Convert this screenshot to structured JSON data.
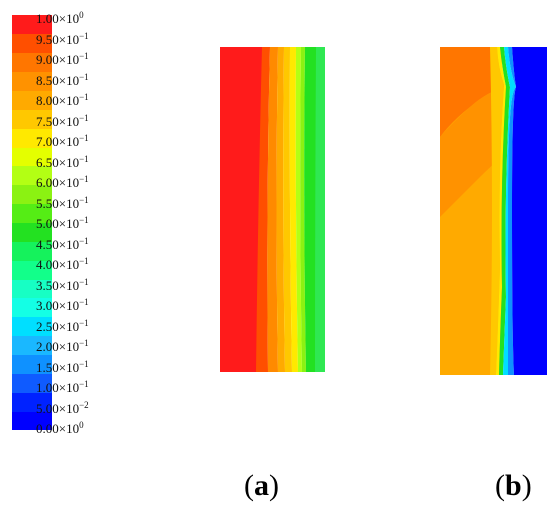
{
  "legend": {
    "colors": [
      "#0000ff",
      "#0022ff",
      "#0f5bff",
      "#0f91ff",
      "#1ab8ff",
      "#00dfff",
      "#14ffe5",
      "#17ffc4",
      "#12ff8a",
      "#15f25c",
      "#23e121",
      "#55ed15",
      "#8bf212",
      "#b3ff14",
      "#e4ff00",
      "#ffe900",
      "#ffc800",
      "#ffaa00",
      "#ff9200",
      "#ff7600",
      "#ff4f00",
      "#ff1b1b"
    ],
    "labels": [
      {
        "mantissa": "1.00",
        "exponent": "0"
      },
      {
        "mantissa": "9.50",
        "exponent": "−1"
      },
      {
        "mantissa": "9.00",
        "exponent": "−1"
      },
      {
        "mantissa": "8.50",
        "exponent": "−1"
      },
      {
        "mantissa": "8.00",
        "exponent": "−1"
      },
      {
        "mantissa": "7.50",
        "exponent": "−1"
      },
      {
        "mantissa": "7.00",
        "exponent": "−1"
      },
      {
        "mantissa": "6.50",
        "exponent": "−1"
      },
      {
        "mantissa": "6.00",
        "exponent": "−1"
      },
      {
        "mantissa": "5.50",
        "exponent": "−1"
      },
      {
        "mantissa": "5.00",
        "exponent": "−1"
      },
      {
        "mantissa": "4.50",
        "exponent": "−1"
      },
      {
        "mantissa": "4.00",
        "exponent": "−1"
      },
      {
        "mantissa": "3.50",
        "exponent": "−1"
      },
      {
        "mantissa": "3.00",
        "exponent": "−1"
      },
      {
        "mantissa": "2.50",
        "exponent": "−1"
      },
      {
        "mantissa": "2.00",
        "exponent": "−1"
      },
      {
        "mantissa": "1.50",
        "exponent": "−1"
      },
      {
        "mantissa": "1.00",
        "exponent": "−1"
      },
      {
        "mantissa": "5.00",
        "exponent": "−2"
      },
      {
        "mantissa": "0.00",
        "exponent": "0"
      }
    ],
    "times_sign": "×10"
  },
  "panels": [
    {
      "label_open": "(",
      "label_letter": "a",
      "label_close": ")"
    },
    {
      "label_open": "(",
      "label_letter": "b",
      "label_close": ")"
    }
  ]
}
